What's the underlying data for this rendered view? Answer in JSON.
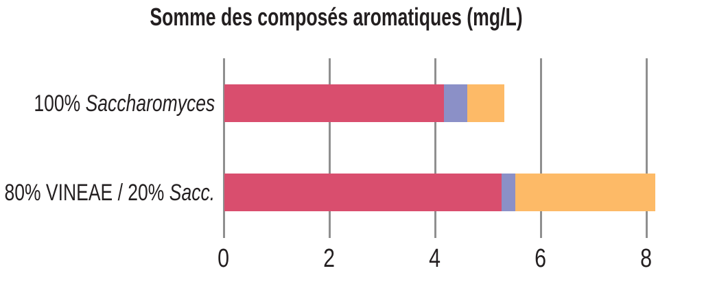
{
  "title": "Somme des composés aromatiques (mg/L)",
  "category_labels": [
    {
      "regular": "100% ",
      "italic": "Saccharomyces"
    },
    {
      "regular": "80% VINEAE / 20% ",
      "italic": "Sacc."
    }
  ],
  "chart_data": {
    "type": "bar",
    "orientation": "horizontal",
    "stacked": true,
    "title": "Somme des composés aromatiques (mg/L)",
    "categories": [
      "100% Saccharomyces",
      "80% VINEAE / 20% Sacc."
    ],
    "series": [
      {
        "name": "rose-segment",
        "color": "#d94e6e",
        "values": [
          4.15,
          5.25
        ]
      },
      {
        "name": "violet-segment",
        "color": "#8b90c7",
        "values": [
          0.45,
          0.25
        ]
      },
      {
        "name": "orange-segment",
        "color": "#fdba67",
        "values": [
          0.7,
          2.65
        ]
      }
    ],
    "totals": [
      5.3,
      8.15
    ],
    "xlabel": "",
    "ylabel": "",
    "xticks": [
      0,
      2,
      4,
      6,
      8
    ],
    "xlim": [
      0,
      9.1
    ],
    "grid": "vertical-gridlines",
    "legend": "none",
    "colors": {
      "gridline": "#8f8f8f",
      "text": "#231f20",
      "background": "#ffffff"
    }
  }
}
